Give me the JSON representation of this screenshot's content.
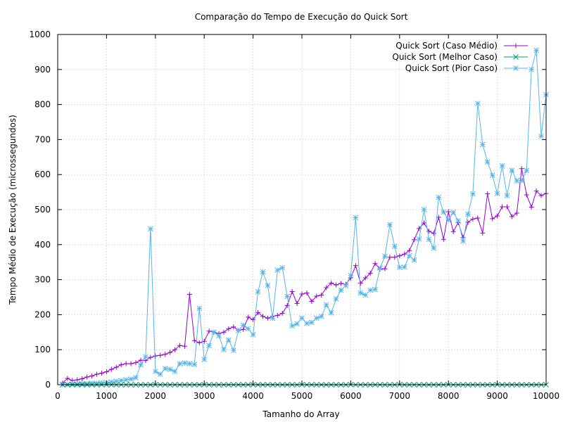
{
  "chart_data": {
    "type": "line",
    "title": "Comparação do Tempo de Execução do Quick Sort",
    "xlabel": "Tamanho do Array",
    "ylabel": "Tempo Médio de Execução (microssegundos)",
    "xlim": [
      0,
      10000
    ],
    "ylim": [
      0,
      1000
    ],
    "xticks": [
      "0",
      "1000",
      "2000",
      "3000",
      "4000",
      "5000",
      "6000",
      "7000",
      "8000",
      "9000",
      "10000"
    ],
    "yticks": [
      "0",
      "100",
      "200",
      "300",
      "400",
      "500",
      "600",
      "700",
      "800",
      "900",
      "1000"
    ],
    "grid": true,
    "legend_position": "top-right",
    "x": [
      100,
      200,
      300,
      400,
      500,
      600,
      700,
      800,
      900,
      1000,
      1100,
      1200,
      1300,
      1400,
      1500,
      1600,
      1700,
      1800,
      1900,
      2000,
      2100,
      2200,
      2300,
      2400,
      2500,
      2600,
      2700,
      2800,
      2900,
      3000,
      3100,
      3200,
      3300,
      3400,
      3500,
      3600,
      3700,
      3800,
      3900,
      4000,
      4100,
      4200,
      4300,
      4400,
      4500,
      4600,
      4700,
      4800,
      4900,
      5000,
      5100,
      5200,
      5300,
      5400,
      5500,
      5600,
      5700,
      5800,
      5900,
      6000,
      6100,
      6200,
      6300,
      6400,
      6500,
      6600,
      6700,
      6800,
      6900,
      7000,
      7100,
      7200,
      7300,
      7400,
      7500,
      7600,
      7700,
      7800,
      7900,
      8000,
      8100,
      8200,
      8300,
      8400,
      8500,
      8600,
      8700,
      8800,
      8900,
      9000,
      9100,
      9200,
      9300,
      9400,
      9500,
      9600,
      9700,
      9800,
      9900,
      10000
    ],
    "series": [
      {
        "name": "Quick Sort (Caso Médio)",
        "color": "#9400d3",
        "marker": "plus",
        "values": [
          5,
          18,
          12,
          14,
          17,
          22,
          25,
          30,
          33,
          37,
          44,
          50,
          57,
          60,
          60,
          63,
          70,
          69,
          78,
          82,
          84,
          87,
          92,
          100,
          112,
          110,
          258,
          126,
          120,
          124,
          153,
          150,
          146,
          150,
          160,
          165,
          155,
          158,
          193,
          186,
          206,
          195,
          190,
          195,
          198,
          204,
          226,
          266,
          232,
          259,
          262,
          238,
          253,
          256,
          277,
          290,
          285,
          289,
          287,
          305,
          340,
          290,
          305,
          318,
          346,
          330,
          331,
          364,
          364,
          368,
          373,
          383,
          414,
          446,
          462,
          438,
          432,
          478,
          415,
          494,
          437,
          463,
          420,
          464,
          473,
          476,
          433,
          545,
          474,
          482,
          508,
          508,
          480,
          490,
          617,
          542,
          507,
          553,
          540,
          546
        ]
      },
      {
        "name": "Quick Sort (Melhor Caso)",
        "color": "#009e73",
        "marker": "x",
        "values": [
          0,
          0,
          0,
          0,
          0,
          0,
          0,
          0,
          0,
          0,
          0,
          0,
          0,
          0,
          0,
          0,
          0,
          0,
          0,
          0,
          0,
          0,
          0,
          0,
          0,
          0,
          0,
          0,
          0,
          0,
          0,
          0,
          0,
          0,
          0,
          0,
          0,
          0,
          0,
          0,
          0,
          0,
          0,
          0,
          0,
          0,
          0,
          0,
          0,
          0,
          0,
          0,
          0,
          0,
          0,
          0,
          0,
          0,
          0,
          0,
          0,
          0,
          0,
          0,
          0,
          0,
          0,
          0,
          0,
          0,
          0,
          0,
          0,
          0,
          0,
          0,
          0,
          0,
          0,
          0,
          0,
          0,
          0,
          0,
          0,
          0,
          0,
          0,
          0,
          0,
          0,
          0,
          0,
          0,
          0,
          0,
          0,
          0,
          0,
          0
        ]
      },
      {
        "name": "Quick Sort (Pior Caso)",
        "color": "#56b4e9",
        "marker": "star",
        "values": [
          0,
          1,
          2,
          2,
          3,
          3,
          4,
          4,
          5,
          6,
          8,
          10,
          12,
          14,
          16,
          20,
          57,
          80,
          445,
          38,
          30,
          46,
          44,
          38,
          60,
          62,
          60,
          58,
          218,
          72,
          112,
          150,
          140,
          100,
          128,
          98,
          155,
          170,
          160,
          143,
          265,
          322,
          283,
          190,
          327,
          334,
          252,
          168,
          174,
          190,
          175,
          178,
          190,
          195,
          228,
          205,
          245,
          270,
          283,
          312,
          477,
          262,
          256,
          270,
          272,
          333,
          367,
          457,
          395,
          335,
          336,
          368,
          356,
          416,
          500,
          415,
          390,
          535,
          493,
          470,
          492,
          468,
          410,
          487,
          545,
          803,
          686,
          636,
          598,
          546,
          625,
          540,
          612,
          582,
          583,
          612,
          900,
          955,
          710,
          828
        ]
      }
    ],
    "legend_labels_display": [
      "Quick Sort (Caso Médio)",
      "Quick Sort (Melhor Caso)",
      "Quick Sort (Pior Caso)"
    ]
  }
}
